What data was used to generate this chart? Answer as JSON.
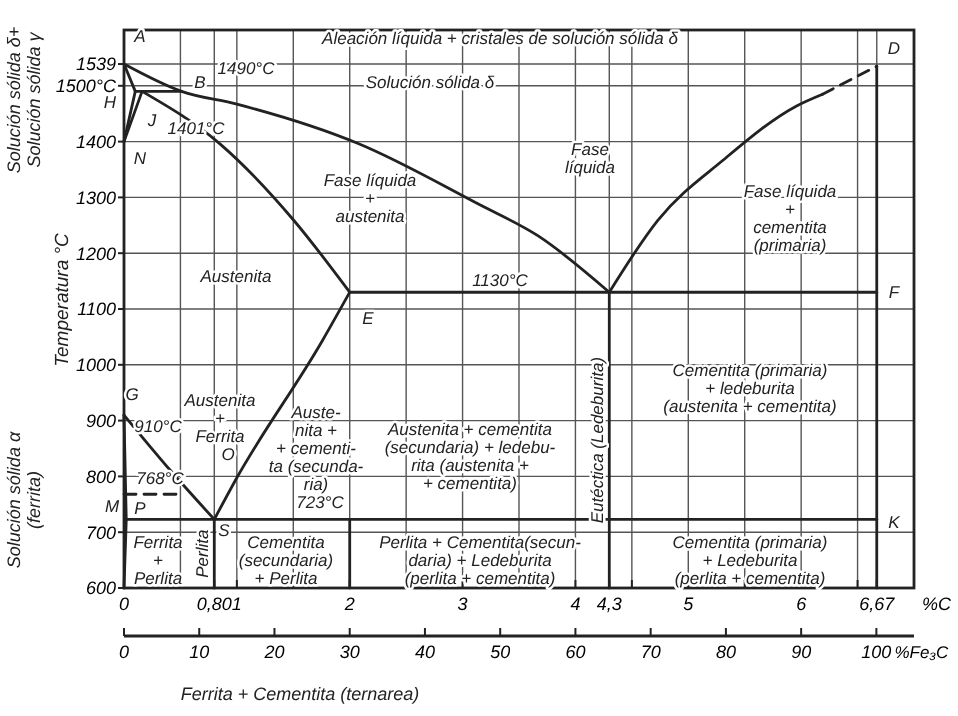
{
  "chart_data": {
    "type": "line",
    "ylabel": "Temperatura °C",
    "xlabel": "%C",
    "x2label": "%Fe₃C",
    "xlim": [
      0,
      7
    ],
    "ylim": [
      600,
      1600
    ],
    "x2lim": [
      0,
      105
    ],
    "xticks": [
      0,
      {
        "value": 0.5,
        "label": null
      },
      {
        "value": 0.8,
        "label": "0,80"
      },
      1,
      {
        "value": 1.5,
        "label": null
      },
      2,
      {
        "value": 2.5,
        "label": null
      },
      3,
      {
        "value": 3.5,
        "label": null
      },
      4,
      {
        "value": 4.3,
        "label": "4,3"
      },
      {
        "value": 4.5,
        "label": null
      },
      5,
      {
        "value": 5.5,
        "label": null
      },
      6,
      {
        "value": 6.5,
        "label": null
      },
      {
        "value": 6.67,
        "label": "6,67"
      }
    ],
    "yticks": [
      600,
      700,
      800,
      900,
      1000,
      1100,
      1200,
      1300,
      1400,
      {
        "value": 1500,
        "label": "1500°C"
      },
      1539
    ],
    "x2ticks": [
      0,
      10,
      20,
      30,
      40,
      50,
      60,
      70,
      80,
      90,
      100
    ],
    "grid": true,
    "marker": "none",
    "line_style": "solid",
    "series": [
      {
        "color": "#222222",
        "x": [
          0,
          0.51,
          1,
          2.08,
          3.14,
          3.67,
          4.3
        ],
        "values": [
          1539,
          1490,
          1467,
          1396,
          1288,
          1231,
          1130
        ]
      },
      {
        "color": "#222222",
        "x": [
          4.3,
          4.73,
          5.31,
          5.96,
          6.19
        ],
        "values": [
          1130,
          1259,
          1367,
          1464,
          1485
        ]
      },
      {
        "color": "#222222",
        "line_style": "dashed",
        "x": [
          6.19,
          6.67
        ],
        "values": [
          1485,
          1535
        ]
      },
      {
        "color": "#222222",
        "x": [
          0,
          0.1
        ],
        "values": [
          1539,
          1490
        ]
      },
      {
        "color": "#222222",
        "x": [
          0.1,
          0.51
        ],
        "values": [
          1490,
          1490
        ]
      },
      {
        "color": "#222222",
        "x": [
          0.1,
          0
        ],
        "values": [
          1490,
          1400
        ]
      },
      {
        "color": "#222222",
        "x": [
          0.16,
          0
        ],
        "values": [
          1490,
          1400
        ]
      },
      {
        "color": "#222222",
        "x": [
          0.16,
          0.85,
          1.5,
          2.0
        ],
        "values": [
          1490,
          1396,
          1260,
          1130
        ]
      },
      {
        "color": "#222222",
        "x": [
          2.0,
          6.67
        ],
        "values": [
          1130,
          1130
        ]
      },
      {
        "color": "#222222",
        "x": [
          0,
          0.41,
          0.8
        ],
        "values": [
          910,
          811,
          723
        ]
      },
      {
        "color": "#222222",
        "x": [
          0.8,
          0.99,
          1.76,
          2.0
        ],
        "values": [
          723,
          794,
          1044,
          1130
        ]
      },
      {
        "color": "#222222",
        "x": [
          0,
          0.02,
          0
        ],
        "values": [
          910,
          723,
          600
        ]
      },
      {
        "color": "#222222",
        "x": [
          0.02,
          6.67
        ],
        "values": [
          723,
          723
        ]
      },
      {
        "color": "#222222",
        "line_style": "dashed",
        "x": [
          0,
          0.5
        ],
        "values": [
          768,
          768
        ]
      },
      {
        "color": "#222222",
        "name": "Perlita",
        "x": [
          0.8,
          0.8
        ],
        "values": [
          723,
          600
        ]
      },
      {
        "color": "#222222",
        "x": [
          2.0,
          2.0
        ],
        "values": [
          723,
          600
        ]
      },
      {
        "color": "#222222",
        "name": "Eutéctica (Ledeburita)",
        "x": [
          4.3,
          4.3
        ],
        "values": [
          1130,
          600
        ]
      },
      {
        "color": "#222222",
        "x": [
          6.67,
          6.67
        ],
        "values": [
          600,
          1535
        ]
      }
    ],
    "annotations": [
      "Aleación líquida + cristales de solución sólida δ",
      "A",
      "1490°C",
      "B",
      "Solución sólida δ",
      "H",
      "J",
      "1401°C",
      "N",
      "Fase líquida\n+\naustenita",
      "Fase\nlíquida",
      "Fase líquida\n+\ncementita\n(primaria)",
      "Austenita",
      "E",
      "1130°C",
      "D",
      "F",
      "Austenita\n+\nFerrita",
      "G",
      "910°C",
      "Auste-\nnita +\n+ cementi-\nta (secunda-\nria)",
      "Austenita + cementita\n(secundaria) + ledebu-\nrita (austenita +\n+ cementita)",
      "Cementita (primaria)\n+ ledeburita\n(austenita + cementita)",
      "768°C",
      "M",
      "O",
      "P",
      "723°C",
      "S",
      "Ferrita\n+\nPerlita",
      "Cementita\n(secundaria)\n+ Perlita",
      "Perlita + Cementita(secun-\ndaria) + Ledeburita\n(perlita + cementita)",
      "Cementita (primaria)\n+ Ledeburita\n(perlita + cementita)",
      "K",
      "Solución sólida δ+\nSolución sólida γ",
      "Solución sólida α\n(ferrita)",
      "Ferrita + Cementita (ternarea)"
    ]
  }
}
